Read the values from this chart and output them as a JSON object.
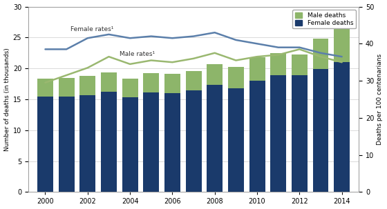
{
  "years": [
    2000,
    2001,
    2002,
    2003,
    2004,
    2005,
    2006,
    2007,
    2008,
    2009,
    2010,
    2011,
    2012,
    2013,
    2014
  ],
  "female_deaths": [
    15.4,
    15.4,
    15.7,
    16.2,
    15.3,
    16.1,
    16.0,
    16.4,
    17.3,
    16.8,
    18.0,
    18.9,
    18.9,
    19.9,
    21.0
  ],
  "male_deaths": [
    2.9,
    3.1,
    3.1,
    3.1,
    3.0,
    3.1,
    3.1,
    3.2,
    3.4,
    3.4,
    3.8,
    3.6,
    3.3,
    4.9,
    5.7
  ],
  "female_rates": [
    38.5,
    38.5,
    41.5,
    42.5,
    41.5,
    42.0,
    41.5,
    42.0,
    43.0,
    41.0,
    40.0,
    39.0,
    39.0,
    37.5,
    36.5
  ],
  "male_rates": [
    29.5,
    31.5,
    33.5,
    36.5,
    34.5,
    35.5,
    35.0,
    36.0,
    37.5,
    35.5,
    36.5,
    37.0,
    38.5,
    36.5,
    35.0
  ],
  "female_bar_color": "#1a3a6b",
  "male_bar_color": "#8db56a",
  "female_rate_color": "#5b7faa",
  "male_rate_color": "#9ab870",
  "ylim_left": [
    0,
    30
  ],
  "ylim_right": [
    0,
    50
  ],
  "yticks_left": [
    0,
    5,
    10,
    15,
    20,
    25,
    30
  ],
  "yticks_right": [
    0,
    10,
    20,
    30,
    40,
    50
  ],
  "ylabel_left": "Number of deaths (in thousands)",
  "ylabel_right": "Deaths per 100 centenarians",
  "legend_labels": [
    "Male deaths",
    "Female deaths"
  ],
  "annotation_female": "Female rates¹",
  "annotation_male": "Male rates¹",
  "background_color": "#ffffff",
  "bar_width": 0.75
}
